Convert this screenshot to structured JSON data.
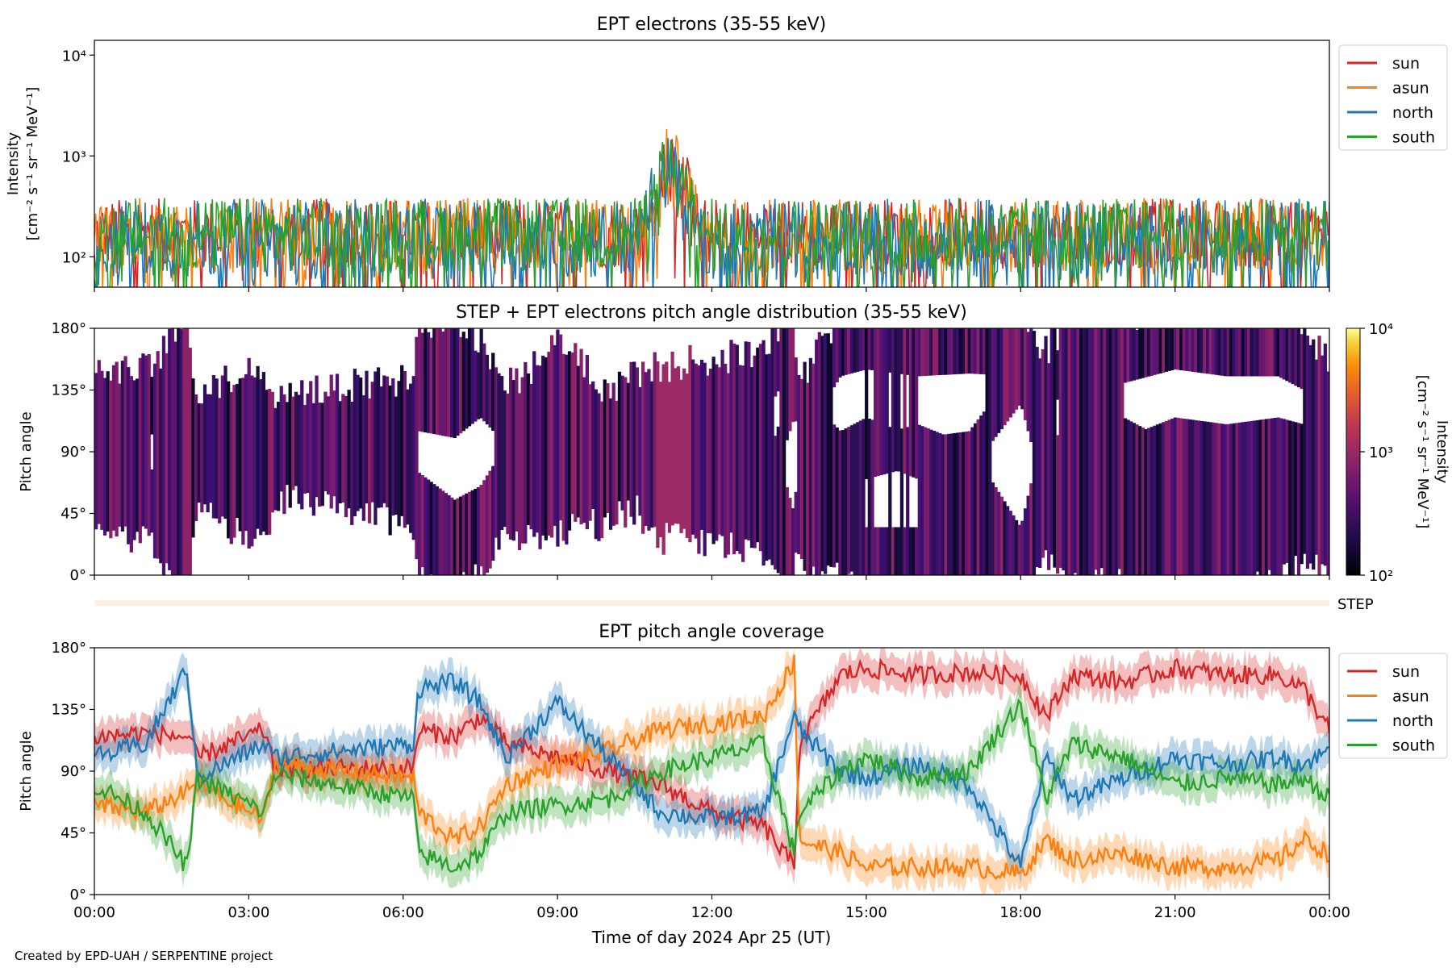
{
  "colors": {
    "sun": "#d62728",
    "asun": "#ff7f0e",
    "north": "#1f77b4",
    "south": "#2ca02c"
  },
  "chart_data": [
    {
      "type": "line",
      "title": "EPT electrons (35-55 keV)",
      "ylabel_line1": "Intensity",
      "ylabel_line2": "[cm⁻² s⁻¹ sr⁻¹ MeV⁻¹]",
      "yscale": "log",
      "ylim": [
        50,
        14000
      ],
      "yticks": [
        {
          "v": 100,
          "label": "10²"
        },
        {
          "v": 1000,
          "label": "10³"
        },
        {
          "v": 10000,
          "label": "10⁴"
        }
      ],
      "xlim_hours": [
        0,
        24
      ],
      "legend": "outside-right",
      "series": [
        {
          "name": "sun",
          "base": 170,
          "spread": 0.35
        },
        {
          "name": "asun",
          "base": 160,
          "spread": 0.38
        },
        {
          "name": "north",
          "base": 150,
          "spread": 0.4
        },
        {
          "name": "south",
          "base": 165,
          "spread": 0.37
        }
      ],
      "events": [
        {
          "hour": 11.2,
          "peak": 1300
        }
      ]
    },
    {
      "type": "heatmap",
      "title": "STEP + EPT electrons pitch angle distribution (35-55 keV)",
      "ylabel": "Pitch angle",
      "ylim": [
        0,
        180
      ],
      "yticks": [
        {
          "v": 0,
          "label": "0°"
        },
        {
          "v": 45,
          "label": "45°"
        },
        {
          "v": 90,
          "label": "90°"
        },
        {
          "v": 135,
          "label": "135°"
        },
        {
          "v": 180,
          "label": "180°"
        }
      ],
      "colorbar": {
        "label_line1": "Intensity",
        "label_line2": "[cm⁻² s⁻¹ sr⁻¹ MeV⁻¹]",
        "scale": "log",
        "range": [
          100,
          10000
        ],
        "ticks": [
          {
            "v": 100,
            "label": "10²"
          },
          {
            "v": 1000,
            "label": "10³"
          },
          {
            "v": 10000,
            "label": "10⁴"
          }
        ]
      }
    },
    {
      "type": "bar",
      "label": "STEP"
    },
    {
      "type": "line",
      "title": "EPT pitch angle coverage",
      "ylabel": "Pitch angle",
      "ylim": [
        0,
        180
      ],
      "yticks": [
        {
          "v": 0,
          "label": "0°"
        },
        {
          "v": 45,
          "label": "45°"
        },
        {
          "v": 90,
          "label": "90°"
        },
        {
          "v": 135,
          "label": "135°"
        },
        {
          "v": 180,
          "label": "180°"
        }
      ],
      "xlabel": "Time of day 2024 Apr 25 (UT)",
      "xlim_hours": [
        0,
        24
      ],
      "xticks": [
        {
          "v": 0,
          "label": "00:00"
        },
        {
          "v": 3,
          "label": "03:00"
        },
        {
          "v": 6,
          "label": "06:00"
        },
        {
          "v": 9,
          "label": "09:00"
        },
        {
          "v": 12,
          "label": "12:00"
        },
        {
          "v": 15,
          "label": "15:00"
        },
        {
          "v": 18,
          "label": "18:00"
        },
        {
          "v": 21,
          "label": "21:00"
        },
        {
          "v": 24,
          "label": "00:00"
        }
      ],
      "legend": "outside-right",
      "series": [
        {
          "name": "sun",
          "hours": [
            0,
            1,
            1.8,
            2,
            3.3,
            3.5,
            6.2,
            6.3,
            7,
            7.5,
            8,
            9,
            10,
            11,
            12,
            13,
            13.6,
            13.7,
            14.5,
            15,
            16,
            17,
            18,
            18.5,
            19,
            20,
            21,
            22,
            23,
            23.5,
            24
          ],
          "values": [
            115,
            118,
            115,
            100,
            120,
            92,
            92,
            120,
            115,
            130,
            110,
            100,
            90,
            80,
            60,
            50,
            20,
            110,
            160,
            165,
            160,
            162,
            160,
            130,
            160,
            155,
            165,
            160,
            160,
            150,
            120
          ]
        },
        {
          "name": "asun",
          "hours": [
            0,
            1,
            1.8,
            2,
            3.3,
            3.5,
            6.2,
            6.3,
            7,
            7.5,
            8,
            9,
            10,
            11,
            12,
            13,
            13.6,
            13.7,
            14.5,
            15,
            16,
            17,
            18,
            18.5,
            19,
            20,
            21,
            22,
            23,
            23.5,
            24
          ],
          "values": [
            65,
            60,
            75,
            80,
            55,
            95,
            85,
            60,
            40,
            50,
            80,
            95,
            105,
            120,
            125,
            130,
            170,
            40,
            30,
            20,
            20,
            20,
            15,
            40,
            25,
            30,
            20,
            20,
            25,
            40,
            30
          ]
        },
        {
          "name": "north",
          "hours": [
            0,
            1,
            1.8,
            2,
            3.3,
            3.5,
            6.2,
            6.3,
            7,
            7.5,
            8,
            9,
            10,
            11,
            12,
            13,
            13.6,
            13.7,
            14.5,
            15,
            16,
            17,
            18,
            18.5,
            19,
            20,
            21,
            22,
            23,
            23.5,
            24
          ],
          "values": [
            100,
            110,
            165,
            85,
            110,
            100,
            110,
            150,
            155,
            140,
            100,
            140,
            100,
            60,
            55,
            60,
            130,
            120,
            90,
            85,
            95,
            80,
            20,
            100,
            70,
            85,
            100,
            95,
            100,
            95,
            105
          ]
        },
        {
          "name": "south",
          "hours": [
            0,
            1,
            1.8,
            2,
            3.3,
            3.5,
            6.2,
            6.3,
            7,
            7.5,
            8,
            9,
            10,
            11,
            12,
            13,
            13.6,
            13.7,
            14.5,
            15,
            16,
            17,
            18,
            18.5,
            19,
            20,
            21,
            22,
            23,
            23.5,
            24
          ],
          "values": [
            80,
            60,
            20,
            85,
            60,
            88,
            70,
            30,
            20,
            30,
            60,
            65,
            70,
            90,
            100,
            110,
            30,
            60,
            90,
            100,
            85,
            90,
            140,
            70,
            110,
            100,
            80,
            85,
            80,
            85,
            70
          ]
        }
      ]
    }
  ],
  "footer": "Created by EPD-UAH / SERPENTINE project"
}
